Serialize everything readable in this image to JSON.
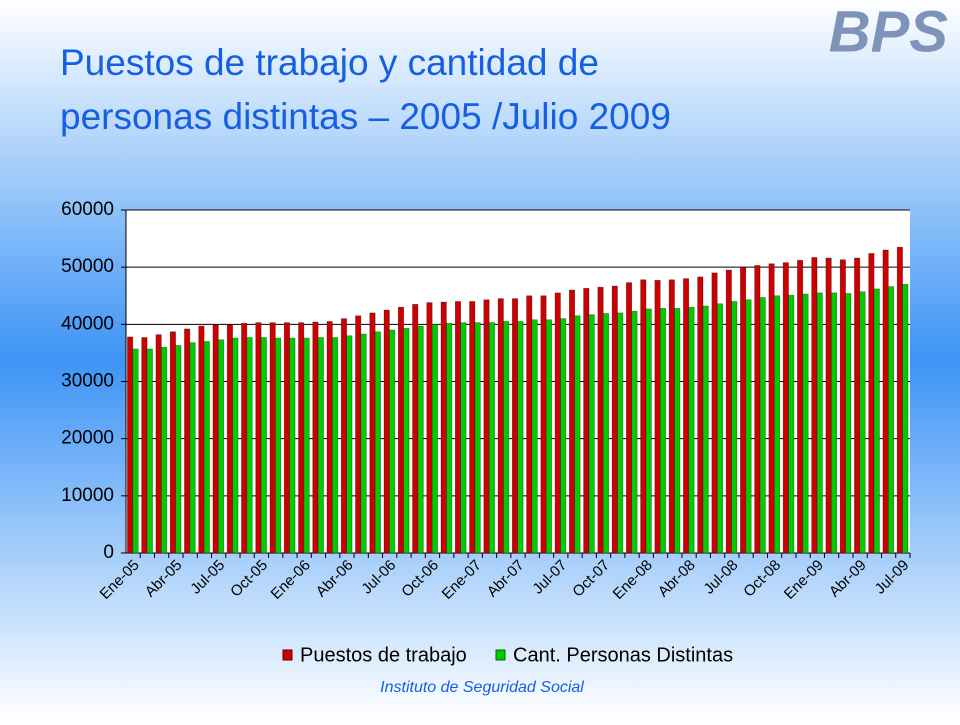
{
  "logo": "BPS",
  "footer": "Instituto de Seguridad Social",
  "chart_data": {
    "type": "bar",
    "title": "Puestos de trabajo y cantidad de personas distintas – 2005 /Julio 2009",
    "categories": [
      "Ene-05",
      null,
      null,
      "Abr-05",
      null,
      null,
      "Jul-05",
      null,
      null,
      "Oct-05",
      null,
      null,
      "Ene-06",
      null,
      null,
      "Abr-06",
      null,
      null,
      "Jul-06",
      null,
      null,
      "Oct-06",
      null,
      null,
      "Ene-07",
      null,
      null,
      "Abr-07",
      null,
      null,
      "Jul-07",
      null,
      null,
      "Oct-07",
      null,
      null,
      "Ene-08",
      null,
      null,
      "Abr-08",
      null,
      null,
      "Jul-08",
      null,
      null,
      "Oct-08",
      null,
      null,
      "Ene-09",
      null,
      null,
      "Abr-09",
      null,
      null,
      "Jul-09"
    ],
    "series": [
      {
        "name": "Puestos de trabajo",
        "color": "#cc0000",
        "values": [
          37800,
          37700,
          38200,
          38700,
          39200,
          39700,
          39900,
          39900,
          40200,
          40300,
          40300,
          40300,
          40300,
          40400,
          40500,
          41000,
          41500,
          42000,
          42500,
          43000,
          43500,
          43800,
          43900,
          44000,
          44000,
          44300,
          44500,
          44500,
          45000,
          45000,
          45500,
          46000,
          46300,
          46500,
          46700,
          47300,
          47800,
          47700,
          47800,
          48000,
          48300,
          49000,
          49500,
          50000,
          50300,
          50600,
          50800,
          51200,
          51700,
          51600,
          51300,
          51600,
          52400,
          53000,
          53500
        ]
      },
      {
        "name": "Cant. Personas Distintas",
        "color": "#00cc00",
        "values": [
          35700,
          35700,
          36000,
          36300,
          36800,
          37000,
          37300,
          37600,
          37700,
          37700,
          37600,
          37600,
          37600,
          37700,
          37700,
          38000,
          38300,
          38700,
          39000,
          39300,
          39700,
          40000,
          40200,
          40300,
          40300,
          40300,
          40500,
          40500,
          40800,
          40800,
          41000,
          41500,
          41700,
          41900,
          42000,
          42300,
          42700,
          42800,
          42800,
          43000,
          43200,
          43600,
          44000,
          44300,
          44700,
          45000,
          45100,
          45300,
          45500,
          45500,
          45400,
          45700,
          46200,
          46600,
          47000
        ]
      }
    ],
    "ylim": [
      0,
      60000
    ],
    "yticks": [
      0,
      10000,
      20000,
      30000,
      40000,
      50000,
      60000
    ],
    "grid": true,
    "legend": "bottom"
  }
}
